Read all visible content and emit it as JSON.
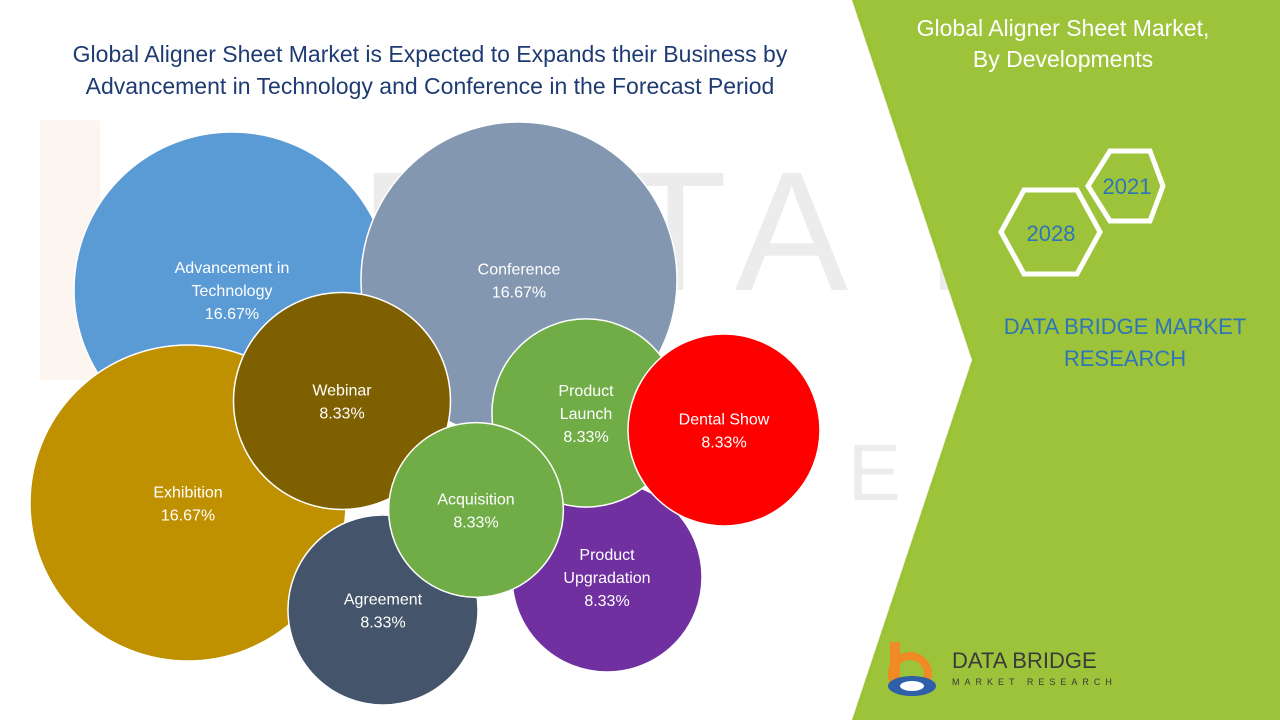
{
  "title": {
    "line1": "Global Aligner Sheet Market is Expected to Expands their Business by",
    "line2": "Advancement in Technology and Conference  in the Forecast Period"
  },
  "panel": {
    "title_line1": "Global Aligner Sheet Market,",
    "title_line2": "By Developments",
    "year_start": "2021",
    "year_end": "2028",
    "brand_line1": "DATA BRIDGE MARKET",
    "brand_line2": "RESEARCH",
    "color": "#9dc33b"
  },
  "logo": {
    "name": "DATA BRIDGE",
    "tagline": "MARKET RESEARCH"
  },
  "chart_data": {
    "type": "bubble",
    "title": "Global Aligner Sheet Market is Expected to Expands their Business by Advancement in Technology and Conference  in the Forecast Period",
    "series": [
      {
        "name": "Advancement in Technology",
        "value": 16.67,
        "label": "16.67%",
        "color": "#5b9bd5"
      },
      {
        "name": "Conference",
        "value": 16.67,
        "label": "16.67%",
        "color": "#8497b0"
      },
      {
        "name": "Exhibition",
        "value": 16.67,
        "label": "16.67%",
        "color": "#bf9000"
      },
      {
        "name": "Webinar",
        "value": 8.33,
        "label": "8.33%",
        "color": "#7f6000"
      },
      {
        "name": "Product Launch",
        "value": 8.33,
        "label": "8.33%",
        "color": "#70ad47"
      },
      {
        "name": "Dental Show",
        "value": 8.33,
        "label": "8.33%",
        "color": "#ff0000"
      },
      {
        "name": "Agreement",
        "value": 8.33,
        "label": "8.33%",
        "color": "#44546a"
      },
      {
        "name": "Product Upgradation",
        "value": 8.33,
        "label": "8.33%",
        "color": "#7030a0"
      },
      {
        "name": "Acquisition",
        "value": 8.33,
        "label": "8.33%",
        "color": "#70ad47"
      }
    ]
  }
}
